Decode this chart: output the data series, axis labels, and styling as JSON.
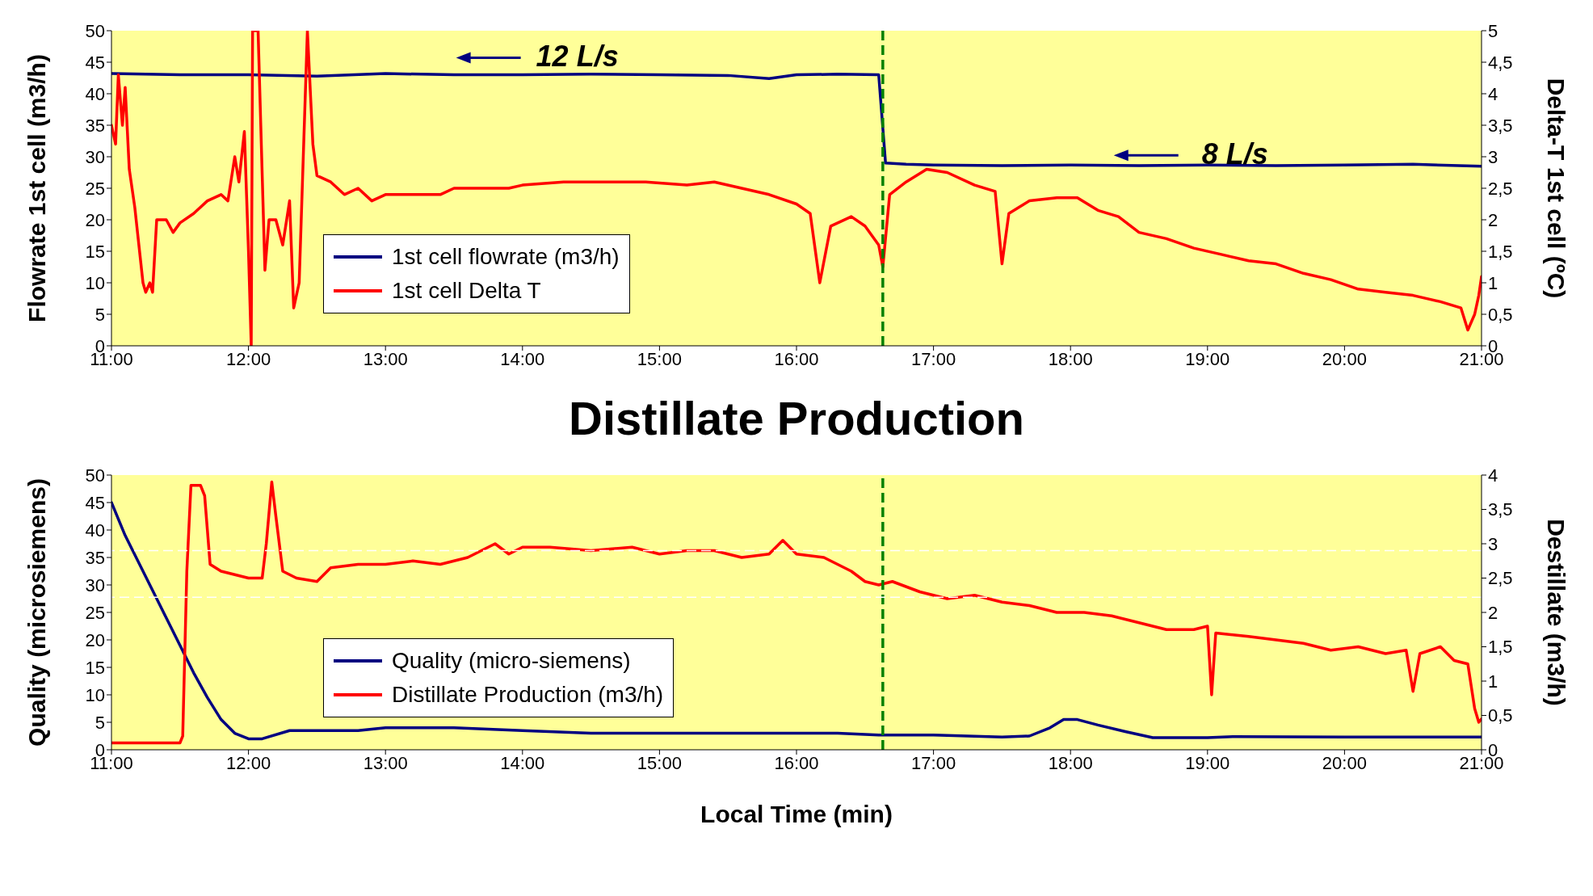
{
  "chart_data": [
    {
      "type": "line",
      "ylabel": "Flowrate 1st cell (m3/h)",
      "y2label": "Delta-T 1st cell (ºC)",
      "xlim": [
        11,
        21
      ],
      "xticks": [
        {
          "value": 11,
          "label": "11:00"
        },
        {
          "value": 12,
          "label": "12:00"
        },
        {
          "value": 13,
          "label": "13:00"
        },
        {
          "value": 14,
          "label": "14:00"
        },
        {
          "value": 15,
          "label": "15:00"
        },
        {
          "value": 16,
          "label": "16:00"
        },
        {
          "value": 17,
          "label": "17:00"
        },
        {
          "value": 18,
          "label": "18:00"
        },
        {
          "value": 19,
          "label": "19:00"
        },
        {
          "value": 20,
          "label": "20:00"
        },
        {
          "value": 21,
          "label": "21:00"
        }
      ],
      "ylim": [
        0,
        50
      ],
      "yticks": [
        0,
        5,
        10,
        15,
        20,
        25,
        30,
        35,
        40,
        45,
        50
      ],
      "y2lim": [
        0,
        5
      ],
      "y2ticks": [
        0,
        {
          "value": 0.5,
          "label": "0,5"
        },
        1,
        {
          "value": 1.5,
          "label": "1,5"
        },
        2,
        {
          "value": 2.5,
          "label": "2,5"
        },
        3,
        {
          "value": 3.5,
          "label": "3,5"
        },
        4,
        {
          "value": 4.5,
          "label": "4,5"
        },
        5
      ],
      "legend": "bottom left",
      "annotations": [
        "12 L/s",
        "8 L/s"
      ],
      "ref_lines": [
        {
          "axis": "x",
          "value": 16.63,
          "color": "#008000",
          "line_style": "dashed"
        }
      ],
      "series": [
        {
          "name": "1st cell flowrate (m3/h)",
          "color": "#000080",
          "x": [
            11,
            11.5,
            12,
            12.5,
            13,
            13.5,
            14,
            14.5,
            15,
            15.5,
            15.8,
            16,
            16.3,
            16.6,
            16.65,
            16.8,
            17,
            17.5,
            18,
            18.5,
            19,
            19.5,
            20,
            20.5,
            21
          ],
          "values": [
            43.2,
            43,
            43,
            42.8,
            43.2,
            43,
            43,
            43.1,
            43,
            42.9,
            42.4,
            43,
            43.1,
            43,
            29,
            28.8,
            28.7,
            28.6,
            28.7,
            28.6,
            28.7,
            28.6,
            28.7,
            28.8,
            28.5
          ]
        },
        {
          "name": "1st cell Delta T",
          "color": "#ff0000",
          "axis": "y2",
          "x": [
            11,
            11.03,
            11.05,
            11.08,
            11.1,
            11.13,
            11.17,
            11.2,
            11.23,
            11.25,
            11.28,
            11.3,
            11.33,
            11.4,
            11.45,
            11.5,
            11.6,
            11.7,
            11.8,
            11.85,
            11.9,
            11.93,
            11.97,
            12,
            12.02,
            12.03,
            12.07,
            12.12,
            12.15,
            12.2,
            12.25,
            12.3,
            12.33,
            12.37,
            12.43,
            12.47,
            12.5,
            12.6,
            12.7,
            12.8,
            12.9,
            13,
            13.2,
            13.4,
            13.5,
            13.7,
            13.9,
            14,
            14.3,
            14.6,
            14.9,
            15.2,
            15.4,
            15.6,
            15.8,
            16,
            16.1,
            16.17,
            16.25,
            16.4,
            16.5,
            16.6,
            16.63,
            16.68,
            16.8,
            16.95,
            17.1,
            17.3,
            17.45,
            17.5,
            17.55,
            17.7,
            17.9,
            18.05,
            18.2,
            18.35,
            18.5,
            18.7,
            18.9,
            19.1,
            19.3,
            19.5,
            19.7,
            19.9,
            20.1,
            20.3,
            20.5,
            20.7,
            20.85,
            20.9,
            20.95,
            20.98,
            21
          ],
          "values": [
            3.5,
            3.2,
            4.3,
            3.5,
            4.1,
            2.8,
            2.2,
            1.6,
            1,
            0.85,
            1,
            0.85,
            2,
            2,
            1.8,
            1.95,
            2.1,
            2.3,
            2.4,
            2.3,
            3,
            2.6,
            3.4,
            1.5,
            0,
            5,
            5,
            1.2,
            2,
            2,
            1.6,
            2.3,
            0.6,
            1,
            5,
            3.2,
            2.7,
            2.6,
            2.4,
            2.5,
            2.3,
            2.4,
            2.4,
            2.4,
            2.5,
            2.5,
            2.5,
            2.55,
            2.6,
            2.6,
            2.6,
            2.55,
            2.6,
            2.5,
            2.4,
            2.25,
            2.1,
            1,
            1.9,
            2.05,
            1.9,
            1.6,
            1.25,
            2.4,
            2.6,
            2.8,
            2.75,
            2.55,
            2.45,
            1.3,
            2.1,
            2.3,
            2.35,
            2.35,
            2.15,
            2.05,
            1.8,
            1.7,
            1.55,
            1.45,
            1.35,
            1.3,
            1.15,
            1.05,
            0.9,
            0.85,
            0.8,
            0.7,
            0.6,
            0.25,
            0.5,
            0.8,
            1.1
          ]
        }
      ]
    },
    {
      "type": "line",
      "title": "Distillate Production",
      "xlabel": "Local Time (min)",
      "ylabel": "Quality (microsiemens)",
      "y2label": "Destillate (m3/h)",
      "xlim": [
        11,
        21
      ],
      "xticks": [
        {
          "value": 11,
          "label": "11:00"
        },
        {
          "value": 12,
          "label": "12:00"
        },
        {
          "value": 13,
          "label": "13:00"
        },
        {
          "value": 14,
          "label": "14:00"
        },
        {
          "value": 15,
          "label": "15:00"
        },
        {
          "value": 16,
          "label": "16:00"
        },
        {
          "value": 17,
          "label": "17:00"
        },
        {
          "value": 18,
          "label": "18:00"
        },
        {
          "value": 19,
          "label": "19:00"
        },
        {
          "value": 20,
          "label": "20:00"
        },
        {
          "value": 21,
          "label": "21:00"
        }
      ],
      "ylim": [
        0,
        50
      ],
      "yticks": [
        0,
        5,
        10,
        15,
        20,
        25,
        30,
        35,
        40,
        45,
        50
      ],
      "y2lim": [
        0,
        4
      ],
      "y2ticks": [
        0,
        {
          "value": 0.5,
          "label": "0,5"
        },
        1,
        {
          "value": 1.5,
          "label": "1,5"
        },
        2,
        {
          "value": 2.5,
          "label": "2,5"
        },
        3,
        {
          "value": 3.5,
          "label": "3,5"
        },
        4
      ],
      "legend": "bottom left",
      "ref_lines": [
        {
          "axis": "x",
          "value": 16.63,
          "color": "#008000",
          "line_style": "dashed"
        },
        {
          "axis": "y2",
          "value": 2.9,
          "color": "#ffffff",
          "line_style": "dashed"
        },
        {
          "axis": "y2",
          "value": 2.22,
          "color": "#ffffff",
          "line_style": "dashed"
        }
      ],
      "series": [
        {
          "name": "Quality (micro-siemens)",
          "color": "#000080",
          "x": [
            11,
            11.1,
            11.2,
            11.3,
            11.4,
            11.5,
            11.6,
            11.7,
            11.8,
            11.9,
            12,
            12.1,
            12.3,
            12.8,
            13,
            13.5,
            14,
            14.5,
            16.3,
            16.6,
            17,
            17.5,
            17.7,
            17.85,
            17.95,
            18.05,
            18.2,
            18.4,
            18.6,
            19,
            19.2,
            20,
            21
          ],
          "values": [
            45,
            39,
            34,
            29,
            24,
            19,
            14,
            9.5,
            5.5,
            3,
            2,
            2,
            3.5,
            3.5,
            4,
            4,
            3.5,
            3,
            3,
            2.7,
            2.7,
            2.3,
            2.5,
            4,
            5.5,
            5.5,
            4.5,
            3.3,
            2.2,
            2.2,
            2.4,
            2.3,
            2.3
          ]
        },
        {
          "name": "Distillate Production (m3/h)",
          "color": "#ff0000",
          "axis": "y2",
          "x": [
            11,
            11.5,
            11.52,
            11.55,
            11.58,
            11.65,
            11.68,
            11.72,
            11.8,
            11.9,
            12,
            12.1,
            12.13,
            12.17,
            12.2,
            12.25,
            12.35,
            12.5,
            12.6,
            12.8,
            13,
            13.2,
            13.4,
            13.6,
            13.8,
            13.9,
            14,
            14.2,
            14.5,
            14.8,
            15,
            15.2,
            15.4,
            15.6,
            15.8,
            15.9,
            16,
            16.2,
            16.4,
            16.5,
            16.6,
            16.7,
            16.9,
            17.1,
            17.3,
            17.5,
            17.7,
            17.9,
            18.1,
            18.3,
            18.5,
            18.7,
            18.9,
            19,
            19.03,
            19.06,
            19.3,
            19.5,
            19.7,
            19.9,
            20.1,
            20.3,
            20.45,
            20.5,
            20.55,
            20.7,
            20.8,
            20.9,
            20.95,
            20.98,
            21
          ],
          "values": [
            0.1,
            0.1,
            0.2,
            2.6,
            3.85,
            3.85,
            3.7,
            2.7,
            2.6,
            2.55,
            2.5,
            2.5,
            3,
            3.9,
            3.4,
            2.6,
            2.5,
            2.45,
            2.65,
            2.7,
            2.7,
            2.75,
            2.7,
            2.8,
            3,
            2.85,
            2.95,
            2.95,
            2.9,
            2.95,
            2.85,
            2.9,
            2.9,
            2.8,
            2.85,
            3.05,
            2.85,
            2.8,
            2.6,
            2.45,
            2.4,
            2.45,
            2.3,
            2.2,
            2.25,
            2.15,
            2.1,
            2,
            2,
            1.95,
            1.85,
            1.75,
            1.75,
            1.8,
            0.8,
            1.7,
            1.65,
            1.6,
            1.55,
            1.45,
            1.5,
            1.4,
            1.45,
            0.85,
            1.4,
            1.5,
            1.3,
            1.25,
            0.6,
            0.4,
            0.45
          ]
        }
      ]
    }
  ]
}
